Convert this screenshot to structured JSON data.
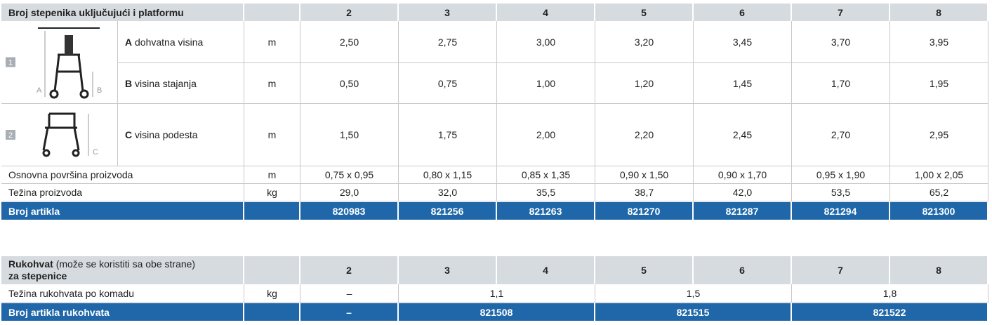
{
  "table1": {
    "header": {
      "label": "Broj stepenika uključujući i platformu",
      "steps": [
        "2",
        "3",
        "4",
        "5",
        "6",
        "7",
        "8"
      ]
    },
    "figures": [
      {
        "number": "1",
        "labels": [
          "A",
          "B"
        ]
      },
      {
        "number": "2",
        "labels": [
          "C"
        ]
      }
    ],
    "rows": [
      {
        "letter": "A",
        "label": "dohvatna visina",
        "unit": "m",
        "values": [
          "2,50",
          "2,75",
          "3,00",
          "3,20",
          "3,45",
          "3,70",
          "3,95"
        ]
      },
      {
        "letter": "B",
        "label": "visina stajanja",
        "unit": "m",
        "values": [
          "0,50",
          "0,75",
          "1,00",
          "1,20",
          "1,45",
          "1,70",
          "1,95"
        ]
      },
      {
        "letter": "C",
        "label": "visina podesta",
        "unit": "m",
        "values": [
          "1,50",
          "1,75",
          "2,00",
          "2,20",
          "2,45",
          "2,70",
          "2,95"
        ]
      }
    ],
    "extra_rows": [
      {
        "label": "Osnovna površina proizvoda",
        "unit": "m",
        "values": [
          "0,75 x 0,95",
          "0,80 x 1,15",
          "0,85 x 1,35",
          "0,90 x 1,50",
          "0,90 x 1,70",
          "0,95 x 1,90",
          "1,00 x 2,05"
        ]
      },
      {
        "label": "Težina proizvoda",
        "unit": "kg",
        "values": [
          "29,0",
          "32,0",
          "35,5",
          "38,7",
          "42,0",
          "53,5",
          "65,2"
        ]
      }
    ],
    "article": {
      "label": "Broj artikla",
      "values": [
        "820983",
        "821256",
        "821263",
        "821270",
        "821287",
        "821294",
        "821300"
      ]
    }
  },
  "table2": {
    "header": {
      "title": "Rukohvat",
      "note": "(može se koristiti sa obe strane)",
      "subtitle": "za stepenice",
      "steps": [
        "2",
        "3",
        "4",
        "5",
        "6",
        "7",
        "8"
      ]
    },
    "weight": {
      "label": "Težina rukohvata po komadu",
      "unit": "kg",
      "values": [
        "–",
        "1,1",
        "1,5",
        "1,8"
      ]
    },
    "article": {
      "label": "Broj artikla rukohvata",
      "values": [
        "–",
        "821508",
        "821515",
        "821522"
      ]
    }
  }
}
